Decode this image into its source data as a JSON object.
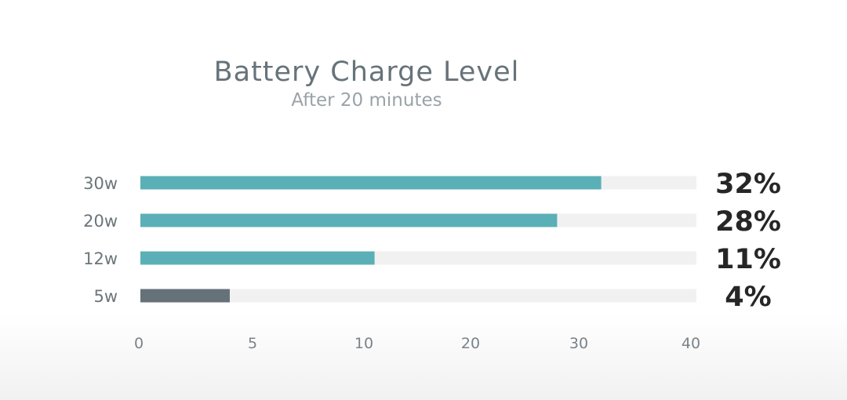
{
  "chart_data": {
    "type": "bar",
    "orientation": "horizontal",
    "title": "Battery Charge Level",
    "subtitle": "After 20 minutes",
    "categories": [
      "30w",
      "20w",
      "12w",
      "5w"
    ],
    "values": [
      32,
      28,
      11,
      4
    ],
    "value_labels": [
      "32%",
      "28%",
      "11%",
      "4%"
    ],
    "xlim": [
      0,
      40
    ],
    "xticks": [
      0,
      5,
      10,
      20,
      30,
      40
    ],
    "grid": false,
    "colors": {
      "bar": "#5bb0b7",
      "highlight_bar": "#66727a",
      "track": "#f1f1f1",
      "category_text": "#6b757b",
      "value_text": "#262626",
      "tick_text": "#7a8389"
    },
    "highlight_index": 3
  }
}
